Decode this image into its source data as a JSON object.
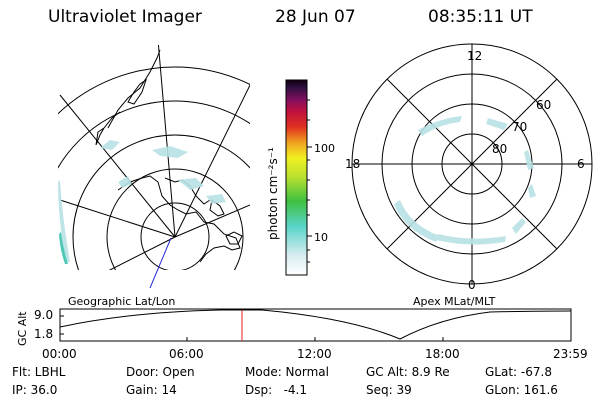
{
  "header": {
    "title": "Ultraviolet Imager",
    "date": "28 Jun 07",
    "time": "08:35:11 UT"
  },
  "left_panel": {
    "caption": "Geographic Lat/Lon"
  },
  "right_panel": {
    "caption": "Apex MLat/MLT",
    "mlt_labels": [
      "12",
      "18",
      "6",
      "0"
    ],
    "lat_labels": [
      "60",
      "70",
      "80"
    ]
  },
  "colorbar": {
    "unit_label": "photon cm⁻²s⁻¹",
    "ticks": [
      "100",
      "10"
    ]
  },
  "orbit_plot": {
    "ylabel": "GC Alt",
    "y_ticks": [
      "9.0",
      "1.8"
    ],
    "x_ticks": [
      "00:00",
      "06:00",
      "12:00",
      "18:00",
      "23:59"
    ]
  },
  "info": {
    "flt": "Flt: LBHL",
    "door": "Door: Open",
    "mode": "Mode: Normal",
    "gc_alt": "GC Alt: 8.9 Re",
    "glat": "GLat: -67.8",
    "ip": "IP: 36.0",
    "gain": "Gain: 14",
    "dsp": "Dsp:   -4.1",
    "seq": "Seq: 39",
    "glon": "GLon: 161.6"
  },
  "colors": {
    "aurora": "#b9e2e6",
    "aurora_edge": "#4fc9b5",
    "satline": "#2a2ad8",
    "cursor": "#e02020"
  }
}
